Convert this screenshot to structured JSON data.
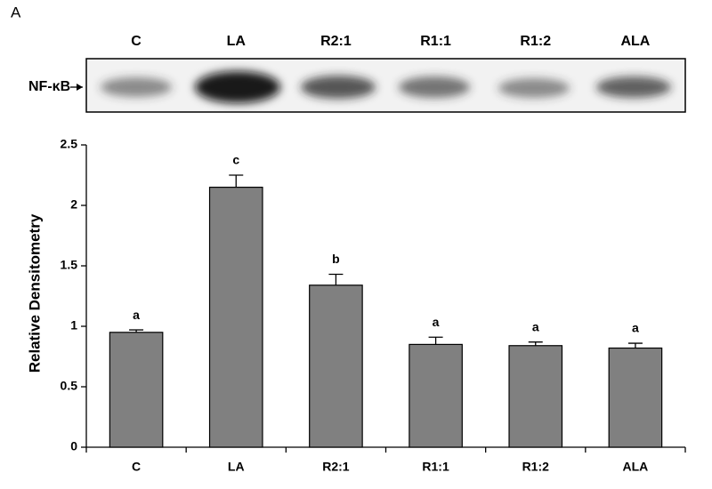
{
  "panel_label": "A",
  "blot": {
    "label": "NF-κB",
    "lanes": [
      "C",
      "LA",
      "R2:1",
      "R1:1",
      "R1:2",
      "ALA"
    ]
  },
  "chart_data": {
    "type": "bar",
    "y_label": "Relative Densitometry",
    "categories": [
      "C",
      "LA",
      "R2:1",
      "R1:1",
      "R1:2",
      "ALA"
    ],
    "values": [
      0.95,
      2.15,
      1.34,
      0.85,
      0.84,
      0.82
    ],
    "errors": [
      0.02,
      0.1,
      0.09,
      0.06,
      0.03,
      0.04
    ],
    "annotations": [
      "a",
      "c",
      "b",
      "a",
      "a",
      "a"
    ],
    "color": "#808080",
    "ylim": [
      0,
      2.5
    ],
    "yticks": [
      0,
      0.5,
      1,
      1.5,
      2,
      2.5
    ],
    "grid": false
  }
}
